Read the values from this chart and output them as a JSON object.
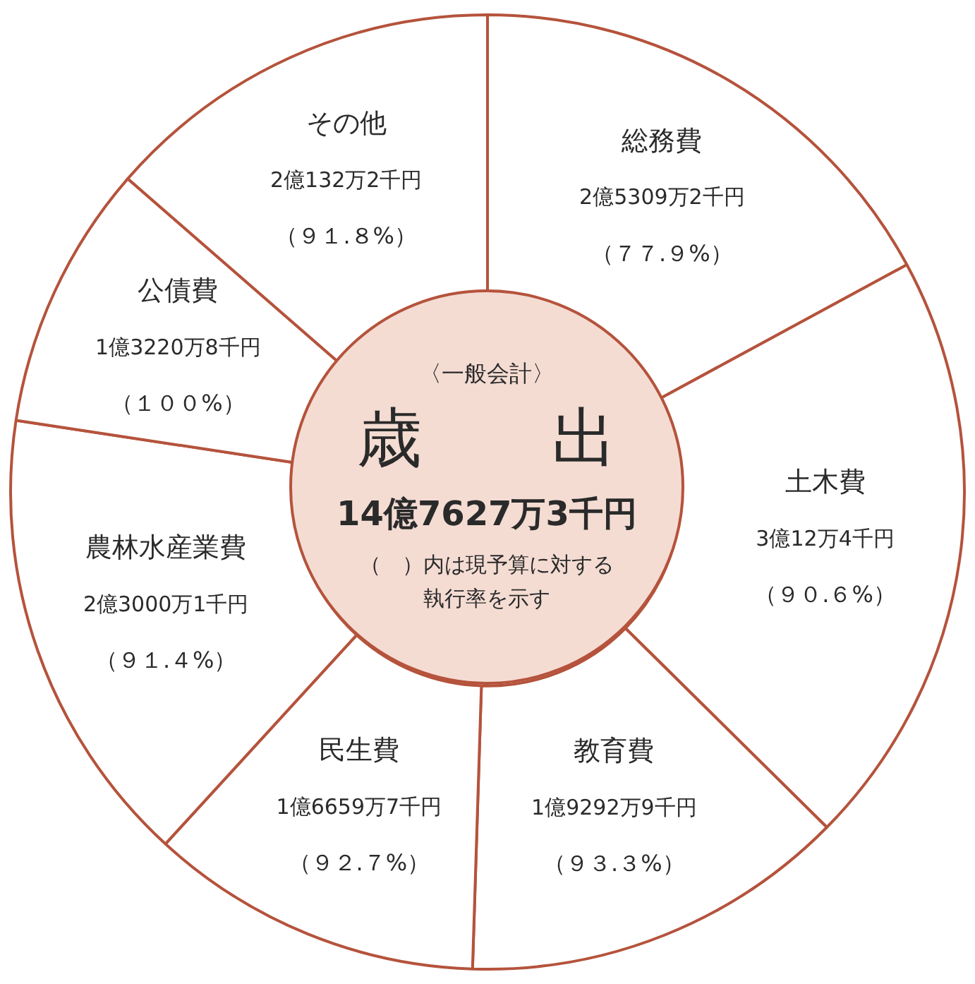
{
  "chart_data": {
    "type": "donut",
    "title": "歳　　出",
    "subtitle": "〈一般会計〉",
    "categories": [
      "総務費",
      "土木費",
      "教育費",
      "民生費",
      "農林水産業費",
      "公債費",
      "その他"
    ],
    "values": [
      17.1,
      20.3,
      13.1,
      11.3,
      15.6,
      9.0,
      13.6
    ],
    "colors": [
      "#ffffff",
      "#ffffff",
      "#ffffff",
      "#ffffff",
      "#ffffff",
      "#ffffff",
      "#ffffff"
    ],
    "annotations": [
      {
        "text": "2億5309万2千円",
        "x": "総務費"
      },
      {
        "text": "3億12万4千円",
        "x": "土木費"
      },
      {
        "text": "1億9292万9千円",
        "x": "教育費"
      },
      {
        "text": "1億6659万7千円",
        "x": "民生費"
      },
      {
        "text": "2億3000万1千円",
        "x": "農林水産業費"
      },
      {
        "text": "1億3220万8千円",
        "x": "公債費"
      },
      {
        "text": "2億132万2千円",
        "x": "その他"
      },
      {
        "text": "（７７.９%）",
        "x": "総務費"
      },
      {
        "text": "（９０.６%）",
        "x": "土木費"
      },
      {
        "text": "（９３.３%）",
        "x": "教育費"
      },
      {
        "text": "（９２.７%）",
        "x": "民生費"
      },
      {
        "text": "（９１.４%）",
        "x": "農林水産業費"
      },
      {
        "text": "（１００%）",
        "x": "公債費"
      },
      {
        "text": "（９１.８%）",
        "x": "その他"
      },
      "14億7627万3千円",
      "（　）内は現予算に対する執行率を示す"
    ],
    "legend": false
  }
}
